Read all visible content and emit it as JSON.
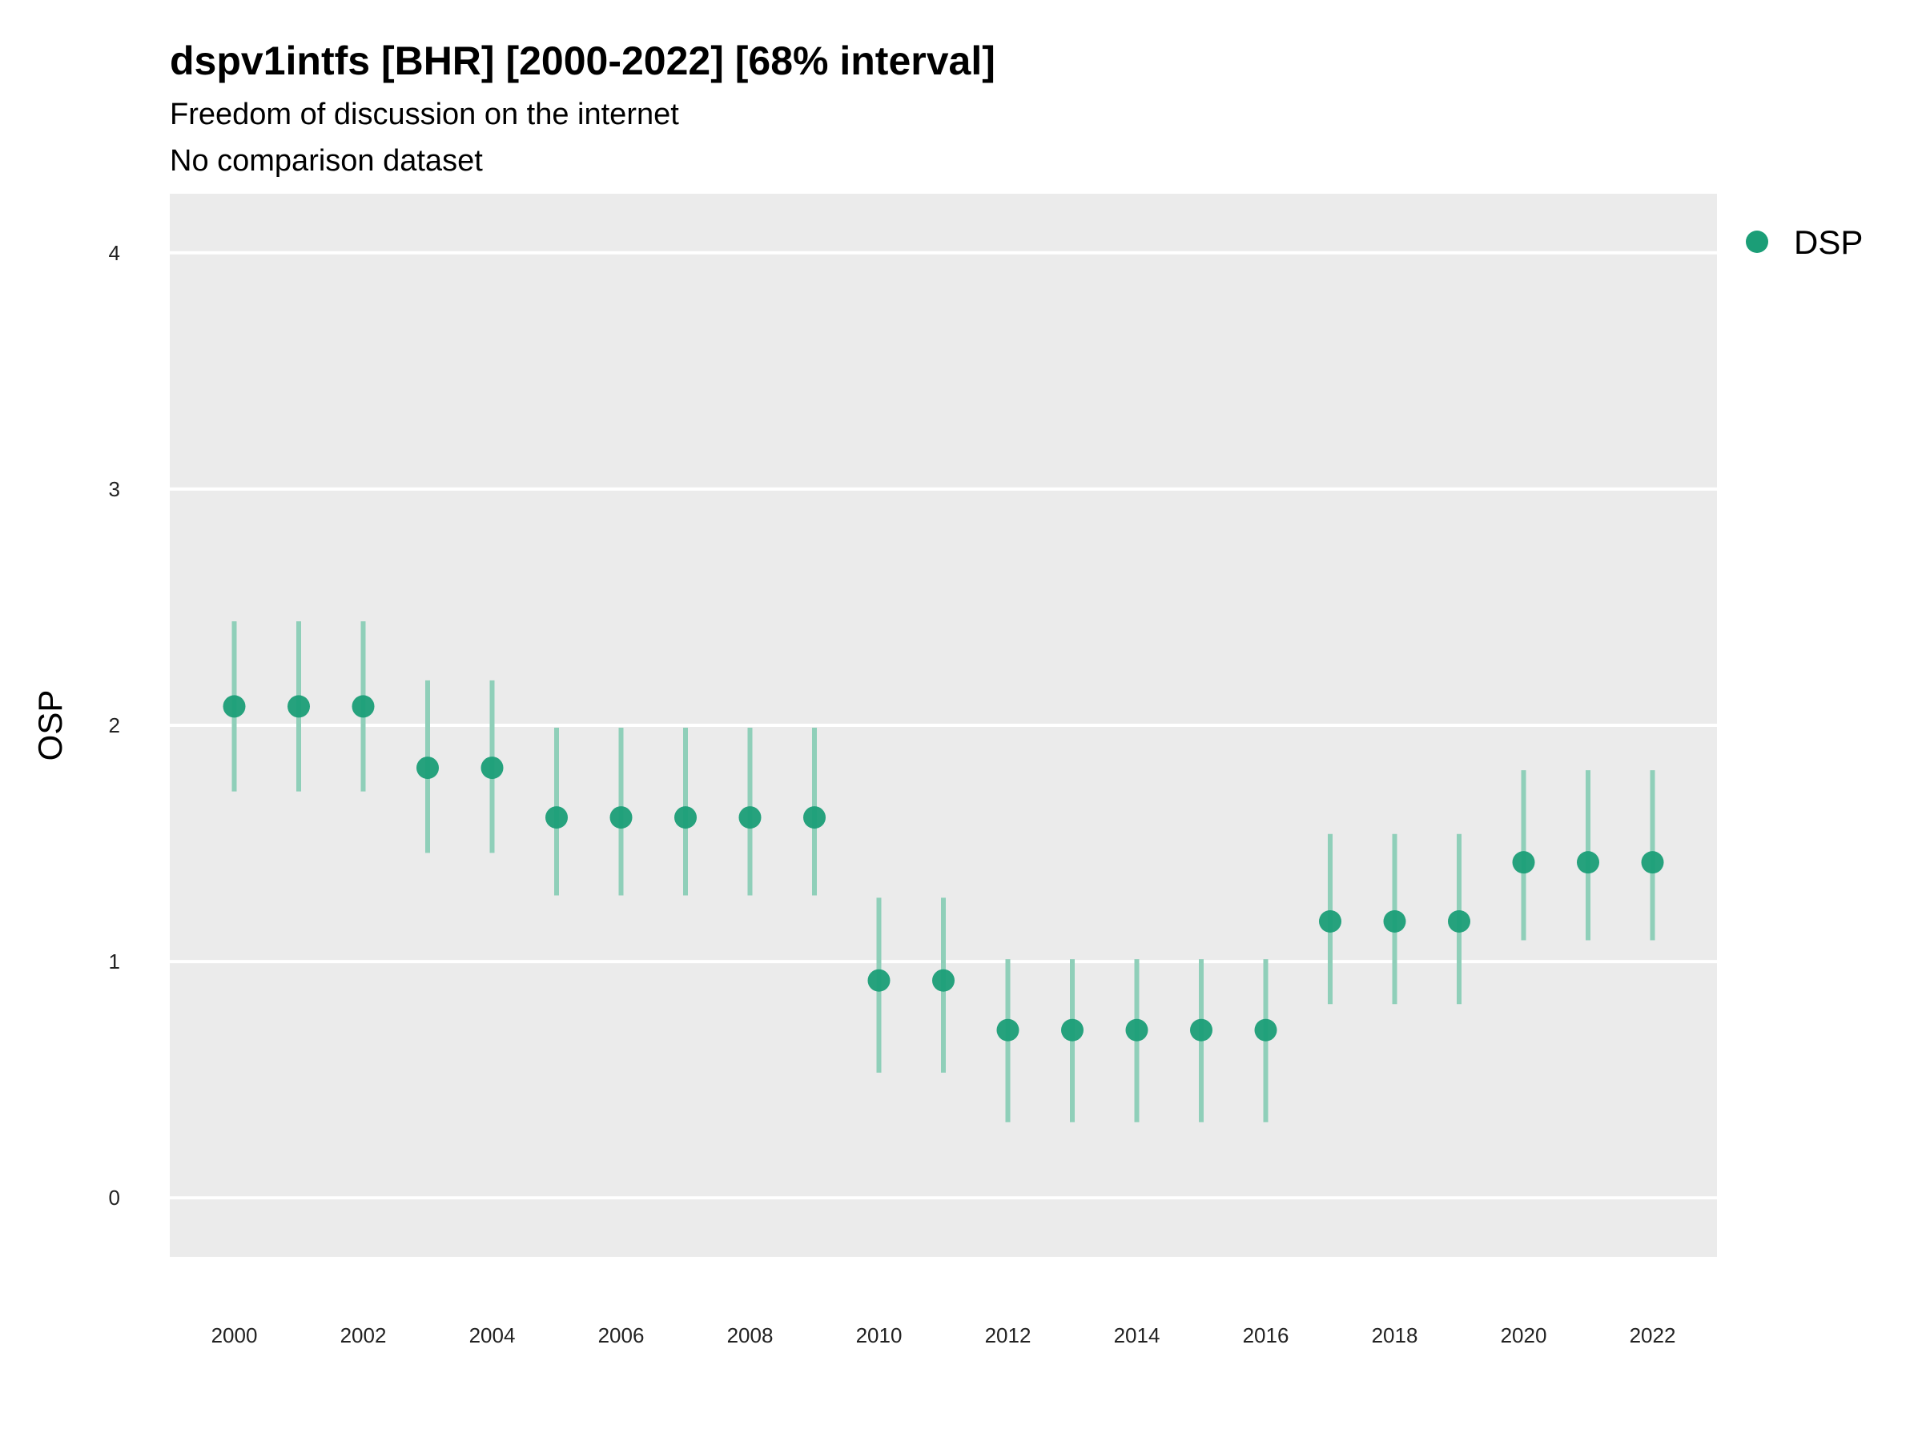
{
  "chart_data": {
    "type": "scatter",
    "title": "dspv1intfs [BHR] [2000-2022] [68% interval]",
    "subtitle": "Freedom of discussion on the internet",
    "caption": "No comparison dataset",
    "xlabel": "",
    "ylabel": "OSP",
    "xlim": [
      1999,
      2023
    ],
    "ylim": [
      -0.25,
      4.25
    ],
    "x_ticks": [
      2000,
      2002,
      2004,
      2006,
      2008,
      2010,
      2012,
      2014,
      2016,
      2018,
      2020,
      2022
    ],
    "y_ticks": [
      0,
      1,
      2,
      3,
      4
    ],
    "grid": true,
    "legend_position": "top-right",
    "colors": {
      "point": "#1b9e77",
      "interval": "#8fcfb9",
      "panel": "#ebebeb",
      "grid": "#ffffff"
    },
    "series": [
      {
        "name": "DSP",
        "x": [
          2000,
          2001,
          2002,
          2003,
          2004,
          2005,
          2006,
          2007,
          2008,
          2009,
          2010,
          2011,
          2012,
          2013,
          2014,
          2015,
          2016,
          2017,
          2018,
          2019,
          2020,
          2021,
          2022
        ],
        "y": [
          2.08,
          2.08,
          2.08,
          1.82,
          1.82,
          1.61,
          1.61,
          1.61,
          1.61,
          1.61,
          0.92,
          0.92,
          0.71,
          0.71,
          0.71,
          0.71,
          0.71,
          1.17,
          1.17,
          1.17,
          1.42,
          1.42,
          1.42
        ],
        "lower": [
          1.72,
          1.72,
          1.72,
          1.46,
          1.46,
          1.28,
          1.28,
          1.28,
          1.28,
          1.28,
          0.53,
          0.53,
          0.32,
          0.32,
          0.32,
          0.32,
          0.32,
          0.82,
          0.82,
          0.82,
          1.09,
          1.09,
          1.09
        ],
        "upper": [
          2.44,
          2.44,
          2.44,
          2.19,
          2.19,
          1.99,
          1.99,
          1.99,
          1.99,
          1.99,
          1.27,
          1.27,
          1.01,
          1.01,
          1.01,
          1.01,
          1.01,
          1.54,
          1.54,
          1.54,
          1.81,
          1.81,
          1.81
        ]
      }
    ]
  }
}
